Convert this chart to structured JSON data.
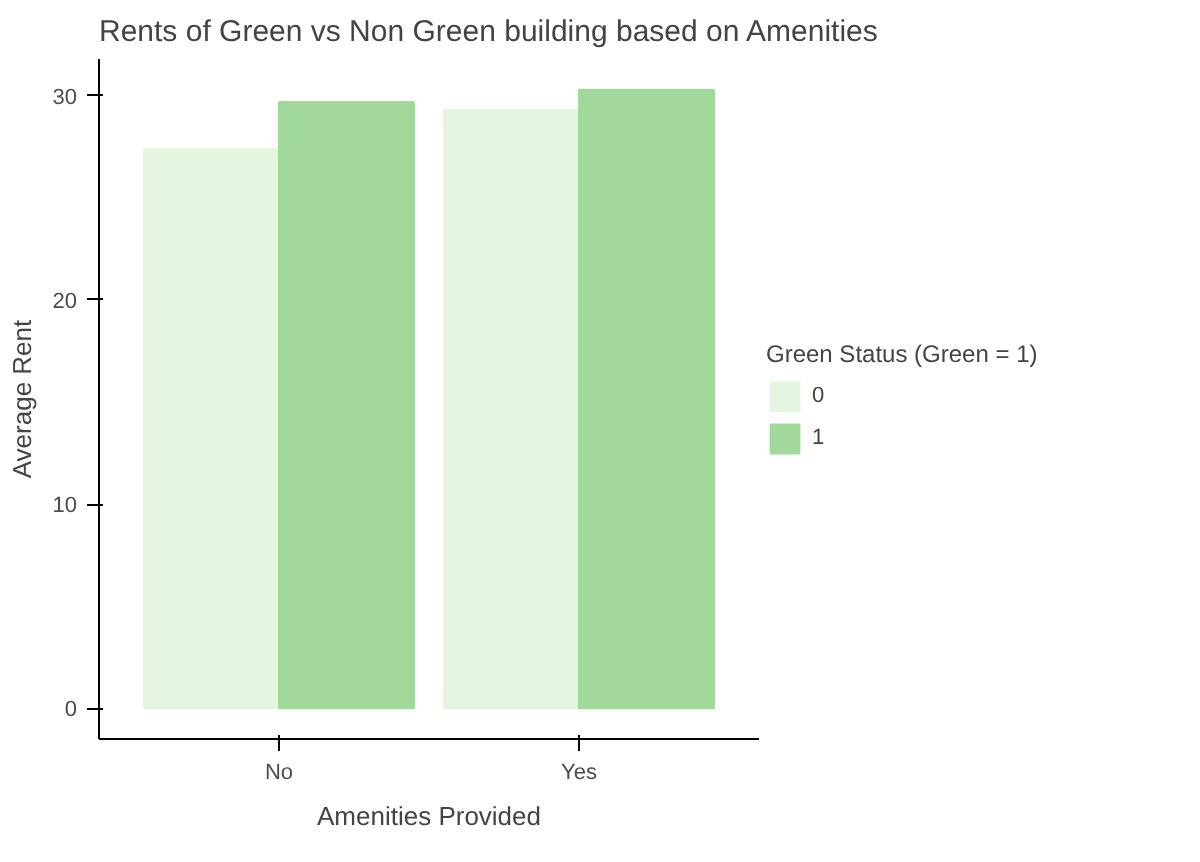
{
  "chart_data": {
    "type": "bar",
    "title": "Rents of Green vs Non Green building based on Amenities",
    "xlabel": "Amenities Provided",
    "ylabel": "Average Rent",
    "legend_title": "Green Status (Green = 1)",
    "categories": [
      "No",
      "Yes"
    ],
    "series": [
      {
        "name": "0",
        "color": "#e5f5e0",
        "values": [
          27.4,
          29.3
        ]
      },
      {
        "name": "1",
        "color": "#a1d99b",
        "values": [
          29.7,
          30.3
        ]
      }
    ],
    "ylim": [
      -1.5,
      31.8
    ],
    "yticks": [
      0,
      10,
      20,
      30
    ],
    "grid": false,
    "legend": "right"
  }
}
